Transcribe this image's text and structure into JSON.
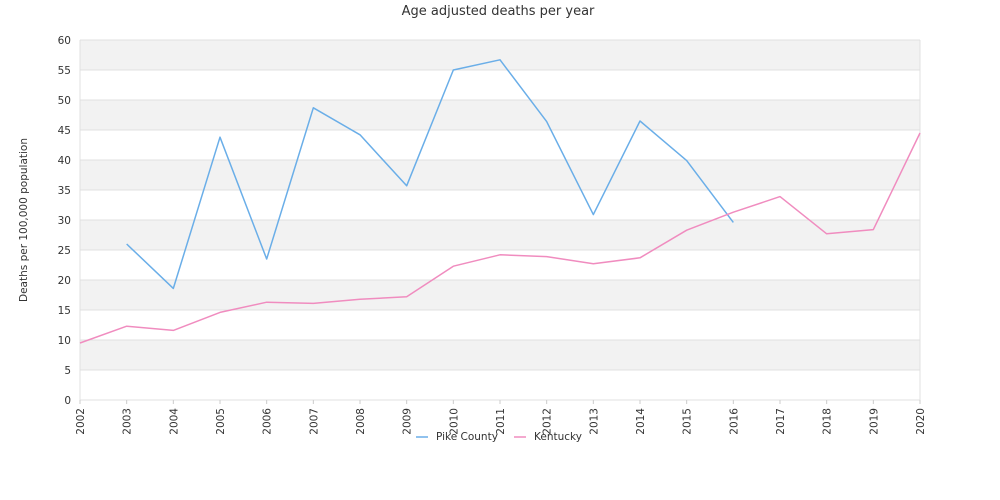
{
  "chart_data": {
    "type": "line",
    "title": "Age adjusted deaths per year",
    "xlabel": "",
    "ylabel": "Deaths per 100,000 population",
    "x": [
      "2002",
      "2003",
      "2004",
      "2005",
      "2006",
      "2007",
      "2008",
      "2009",
      "2010",
      "2011",
      "2012",
      "2013",
      "2014",
      "2015",
      "2016",
      "2017",
      "2018",
      "2019",
      "2020"
    ],
    "ylim": [
      0,
      60
    ],
    "yticks": [
      0,
      5,
      10,
      15,
      20,
      25,
      30,
      35,
      40,
      45,
      50,
      55,
      60
    ],
    "grid": "horizontal alternating bands",
    "legend": "bottom-center",
    "series": [
      {
        "name": "Pike County",
        "color": "#6aaee8",
        "values": [
          null,
          26.0,
          18.6,
          43.8,
          23.5,
          48.7,
          44.2,
          35.7,
          55.0,
          56.7,
          46.4,
          30.9,
          46.5,
          39.9,
          29.6,
          null,
          null,
          null,
          null
        ]
      },
      {
        "name": "Kentucky",
        "color": "#f08cbf",
        "values": [
          9.5,
          12.3,
          11.6,
          14.6,
          16.3,
          16.1,
          16.8,
          17.2,
          22.3,
          24.2,
          23.9,
          22.7,
          23.7,
          28.3,
          31.3,
          33.9,
          27.7,
          28.4,
          44.5
        ]
      }
    ]
  }
}
